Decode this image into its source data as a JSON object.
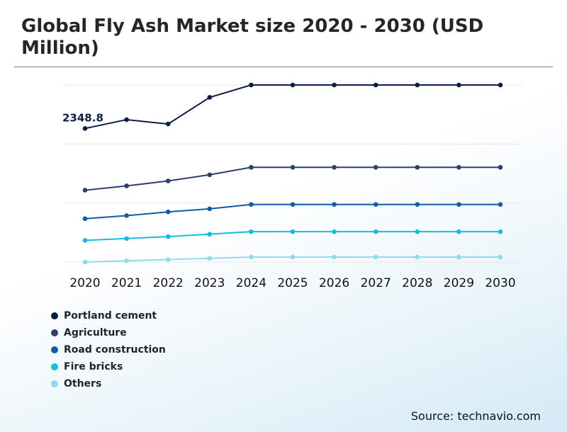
{
  "title": "Global Fly Ash Market size 2020 - 2030 (USD Million)",
  "source": "Source: technavio.com",
  "chart_data": {
    "type": "line",
    "x": [
      "2020",
      "2021",
      "2022",
      "2023",
      "2024",
      "2025",
      "2026",
      "2027",
      "2028",
      "2029",
      "2030"
    ],
    "series": [
      {
        "name": "Portland cement",
        "color": "#0b1f44",
        "values": [
          2348.8,
          2420,
          2385,
          2600,
          2700,
          2700,
          2700,
          2700,
          2700,
          2700,
          2700
        ]
      },
      {
        "name": "Agriculture",
        "color": "#2e3f6e",
        "values": [
          1850,
          1885,
          1925,
          1975,
          2035,
          2035,
          2035,
          2035,
          2035,
          2035,
          2035
        ]
      },
      {
        "name": "Road construction",
        "color": "#0f5ca8",
        "values": [
          1620,
          1645,
          1675,
          1700,
          1735,
          1735,
          1735,
          1735,
          1735,
          1735,
          1735
        ]
      },
      {
        "name": "Fire bricks",
        "color": "#13bde0",
        "values": [
          1445,
          1460,
          1475,
          1495,
          1515,
          1515,
          1515,
          1515,
          1515,
          1515,
          1515
        ]
      },
      {
        "name": "Others",
        "color": "#8fdcef",
        "values": [
          1270,
          1280,
          1290,
          1300,
          1310,
          1310,
          1310,
          1310,
          1310,
          1310,
          1310
        ]
      }
    ],
    "annotations": [
      {
        "series": 0,
        "index": 0,
        "text": "2348.8"
      }
    ],
    "ylim": [
      1270,
      2700
    ],
    "grid": true,
    "legend": "bottom-left"
  }
}
